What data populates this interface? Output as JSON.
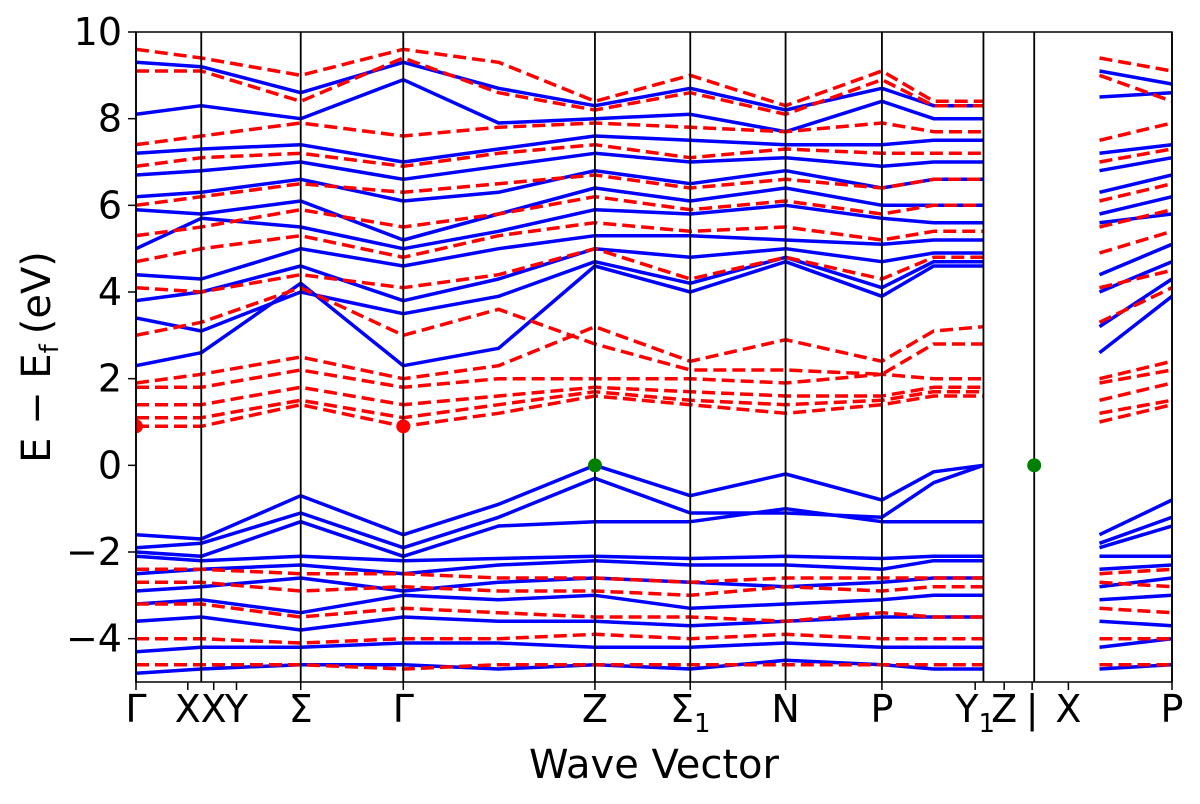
{
  "chart_data": {
    "type": "line",
    "title": "",
    "xlabel": "Wave Vector",
    "ylabel": "E − E_f (eV)",
    "ylabel_main": "E − E",
    "ylabel_sub": "f",
    "ylabel_unit": "(eV)",
    "ylim": [
      -5,
      10
    ],
    "xlim": [
      0,
      1
    ],
    "yticks": [
      -4,
      -2,
      0,
      2,
      4,
      6,
      8,
      10
    ],
    "ytick_labels": [
      "−4",
      "−2",
      "0",
      "2",
      "4",
      "6",
      "8",
      "10"
    ],
    "kpoint_ticks": [
      {
        "label": "Γ",
        "sub": "",
        "pos": 0.0
      },
      {
        "label": "X",
        "sub": "",
        "pos": 0.05
      },
      {
        "label": "X",
        "sub": "",
        "pos": 0.075
      },
      {
        "label": "Y",
        "sub": "",
        "pos": 0.097
      },
      {
        "label": "Σ",
        "sub": "",
        "pos": 0.159
      },
      {
        "label": "Γ",
        "sub": "",
        "pos": 0.258
      },
      {
        "label": "Z",
        "sub": "",
        "pos": 0.443
      },
      {
        "label": "Σ",
        "sub": "1",
        "pos": 0.535
      },
      {
        "label": "N",
        "sub": "",
        "pos": 0.627
      },
      {
        "label": "P",
        "sub": "",
        "pos": 0.72
      },
      {
        "label": "Y",
        "sub": "1",
        "pos": 0.81
      },
      {
        "label": "Z",
        "sub": "",
        "pos": 0.838
      },
      {
        "label": "|",
        "sub": "",
        "pos": 0.865
      },
      {
        "label": "X",
        "sub": "",
        "pos": 0.9
      },
      {
        "label": "P",
        "sub": "",
        "pos": 1.0
      }
    ],
    "segment_lines": [
      0.0,
      0.063,
      0.159,
      0.258,
      0.443,
      0.535,
      0.627,
      0.72,
      0.818,
      0.867,
      1.0
    ],
    "path_break": [
      0.818,
      0.867
    ],
    "k_nodes": [
      0.0,
      0.063,
      0.159,
      0.258,
      0.35,
      0.443,
      0.535,
      0.627,
      0.72,
      0.77,
      0.818,
      0.867,
      0.93,
      1.0
    ],
    "series": [
      {
        "spin": "up",
        "color": "#0000ff",
        "style": "solid",
        "energies": [
          -1.6,
          -1.7,
          -0.7,
          -1.6,
          -0.9,
          0.0,
          -0.7,
          -0.2,
          -0.8,
          -0.15,
          0.0,
          null,
          -1.6,
          -0.8
        ]
      },
      {
        "spin": "up",
        "color": "#0000ff",
        "style": "solid",
        "energies": [
          -1.9,
          -1.8,
          -1.1,
          -1.9,
          -1.2,
          -0.3,
          -1.1,
          -1.1,
          -1.2,
          -0.4,
          0.0,
          null,
          -1.8,
          -1.2
        ]
      },
      {
        "spin": "up",
        "color": "#0000ff",
        "style": "solid",
        "energies": [
          -2.0,
          -2.1,
          -1.3,
          -2.1,
          -1.4,
          -1.3,
          -1.3,
          -1.0,
          -1.3,
          -1.3,
          -1.3,
          null,
          -1.9,
          -1.4
        ]
      },
      {
        "spin": "up",
        "color": "#0000ff",
        "style": "solid",
        "energies": [
          -2.1,
          -2.2,
          -2.1,
          -2.2,
          -2.15,
          -2.1,
          -2.15,
          -2.1,
          -2.15,
          -2.1,
          -2.1,
          null,
          -2.1,
          -2.1
        ]
      },
      {
        "spin": "up",
        "color": "#0000ff",
        "style": "solid",
        "energies": [
          -2.5,
          -2.4,
          -2.3,
          -2.5,
          -2.3,
          -2.2,
          -2.3,
          -2.3,
          -2.4,
          -2.2,
          -2.2,
          null,
          -2.4,
          -2.3
        ]
      },
      {
        "spin": "up",
        "color": "#0000ff",
        "style": "solid",
        "energies": [
          -2.9,
          -2.8,
          -2.6,
          -2.9,
          -2.7,
          -2.6,
          -2.7,
          -2.8,
          -2.7,
          -2.6,
          -2.6,
          null,
          -2.8,
          -2.6
        ]
      },
      {
        "spin": "up",
        "color": "#0000ff",
        "style": "solid",
        "energies": [
          -3.2,
          -3.1,
          -3.4,
          -3.0,
          -3.1,
          -3.0,
          -3.3,
          -3.2,
          -3.1,
          -3.0,
          -3.0,
          null,
          -3.1,
          -3.0
        ]
      },
      {
        "spin": "up",
        "color": "#0000ff",
        "style": "solid",
        "energies": [
          -3.6,
          -3.5,
          -3.8,
          -3.5,
          -3.6,
          -3.6,
          -3.7,
          -3.6,
          -3.5,
          -3.5,
          -3.5,
          null,
          -3.6,
          -3.7
        ]
      },
      {
        "spin": "up",
        "color": "#0000ff",
        "style": "solid",
        "energies": [
          -4.3,
          -4.2,
          -4.2,
          -4.1,
          -4.1,
          -4.2,
          -4.2,
          -4.1,
          -4.2,
          -4.2,
          -4.2,
          null,
          -4.2,
          -4.0
        ]
      },
      {
        "spin": "up",
        "color": "#0000ff",
        "style": "solid",
        "energies": [
          -4.8,
          -4.7,
          -4.6,
          -4.6,
          -4.7,
          -4.6,
          -4.7,
          -4.5,
          -4.6,
          -4.7,
          -4.7,
          null,
          -4.7,
          -4.6
        ]
      },
      {
        "spin": "up",
        "color": "#0000ff",
        "style": "solid",
        "energies": [
          2.3,
          2.6,
          4.2,
          2.3,
          2.7,
          4.6,
          4.0,
          4.7,
          3.9,
          4.6,
          4.6,
          null,
          2.6,
          3.9
        ]
      },
      {
        "spin": "up",
        "color": "#0000ff",
        "style": "solid",
        "energies": [
          3.4,
          3.1,
          4.0,
          3.5,
          3.9,
          4.7,
          4.2,
          4.8,
          4.1,
          4.7,
          4.7,
          null,
          3.2,
          4.3
        ]
      },
      {
        "spin": "up",
        "color": "#0000ff",
        "style": "solid",
        "energies": [
          3.8,
          4.0,
          4.6,
          3.8,
          4.3,
          5.0,
          4.8,
          5.0,
          4.7,
          4.9,
          4.9,
          null,
          4.0,
          4.7
        ]
      },
      {
        "spin": "up",
        "color": "#0000ff",
        "style": "solid",
        "energies": [
          4.4,
          4.3,
          5.0,
          4.6,
          5.0,
          5.3,
          5.3,
          5.2,
          5.1,
          5.2,
          5.2,
          null,
          4.4,
          5.1
        ]
      },
      {
        "spin": "up",
        "color": "#0000ff",
        "style": "solid",
        "energies": [
          5.0,
          5.7,
          5.5,
          5.0,
          5.4,
          5.9,
          5.8,
          6.0,
          5.7,
          5.6,
          5.6,
          null,
          5.6,
          5.8
        ]
      },
      {
        "spin": "up",
        "color": "#0000ff",
        "style": "solid",
        "energies": [
          5.9,
          5.8,
          6.1,
          5.2,
          5.8,
          6.4,
          6.1,
          6.4,
          6.0,
          6.0,
          6.0,
          null,
          5.8,
          6.2
        ]
      },
      {
        "spin": "up",
        "color": "#0000ff",
        "style": "solid",
        "energies": [
          6.2,
          6.3,
          6.6,
          6.1,
          6.3,
          6.8,
          6.5,
          6.8,
          6.4,
          6.6,
          6.6,
          null,
          6.3,
          6.7
        ]
      },
      {
        "spin": "up",
        "color": "#0000ff",
        "style": "solid",
        "energies": [
          6.7,
          6.8,
          7.0,
          6.6,
          6.9,
          7.2,
          7.0,
          7.1,
          6.9,
          7.0,
          7.0,
          null,
          6.8,
          7.1
        ]
      },
      {
        "spin": "up",
        "color": "#0000ff",
        "style": "solid",
        "energies": [
          7.2,
          7.3,
          7.4,
          7.0,
          7.3,
          7.6,
          7.5,
          7.4,
          7.4,
          7.5,
          7.5,
          null,
          7.2,
          7.4
        ]
      },
      {
        "spin": "up",
        "color": "#0000ff",
        "style": "solid",
        "energies": [
          8.1,
          8.3,
          8.0,
          8.9,
          7.9,
          8.0,
          8.1,
          7.7,
          8.4,
          8.0,
          8.0,
          null,
          8.5,
          8.6
        ]
      },
      {
        "spin": "up",
        "color": "#0000ff",
        "style": "solid",
        "energies": [
          9.3,
          9.2,
          8.6,
          9.3,
          8.7,
          8.3,
          8.7,
          8.2,
          8.7,
          8.3,
          8.3,
          null,
          9.1,
          8.8
        ]
      },
      {
        "spin": "down",
        "color": "#ff0000",
        "style": "dashed",
        "energies": [
          -2.4,
          -2.4,
          -2.5,
          -2.5,
          -2.6,
          -2.6,
          -2.7,
          -2.6,
          -2.6,
          -2.6,
          -2.6,
          null,
          -2.5,
          -2.4
        ]
      },
      {
        "spin": "down",
        "color": "#ff0000",
        "style": "dashed",
        "energies": [
          -2.7,
          -2.7,
          -2.9,
          -2.8,
          -2.9,
          -2.9,
          -3.0,
          -2.8,
          -2.9,
          -2.8,
          -2.8,
          null,
          -2.7,
          -2.8
        ]
      },
      {
        "spin": "down",
        "color": "#ff0000",
        "style": "dashed",
        "energies": [
          -3.2,
          -3.2,
          -3.5,
          -3.3,
          -3.4,
          -3.5,
          -3.5,
          -3.6,
          -3.4,
          -3.5,
          -3.5,
          null,
          -3.3,
          -3.4
        ]
      },
      {
        "spin": "down",
        "color": "#ff0000",
        "style": "dashed",
        "energies": [
          -4.0,
          -4.0,
          -4.1,
          -4.0,
          -4.0,
          -3.9,
          -4.0,
          -3.9,
          -4.0,
          -4.0,
          -4.0,
          null,
          -4.0,
          -4.0
        ]
      },
      {
        "spin": "down",
        "color": "#ff0000",
        "style": "dashed",
        "energies": [
          -4.6,
          -4.6,
          -4.6,
          -4.7,
          -4.6,
          -4.6,
          -4.6,
          -4.6,
          -4.6,
          -4.6,
          -4.6,
          null,
          -4.6,
          -4.6
        ]
      },
      {
        "spin": "down",
        "color": "#ff0000",
        "style": "dashed",
        "energies": [
          0.9,
          0.9,
          1.4,
          0.9,
          1.2,
          1.6,
          1.4,
          1.2,
          1.4,
          1.6,
          1.6,
          null,
          1.0,
          1.4
        ]
      },
      {
        "spin": "down",
        "color": "#ff0000",
        "style": "dashed",
        "energies": [
          1.1,
          1.1,
          1.5,
          1.1,
          1.4,
          1.7,
          1.5,
          1.4,
          1.5,
          1.7,
          1.7,
          null,
          1.2,
          1.5
        ]
      },
      {
        "spin": "down",
        "color": "#ff0000",
        "style": "dashed",
        "energies": [
          1.4,
          1.4,
          1.8,
          1.4,
          1.6,
          1.8,
          1.7,
          1.6,
          1.6,
          1.8,
          1.8,
          null,
          1.5,
          1.9
        ]
      },
      {
        "spin": "down",
        "color": "#ff0000",
        "style": "dashed",
        "energies": [
          1.8,
          1.8,
          2.2,
          1.8,
          2.0,
          2.0,
          2.0,
          1.9,
          2.1,
          2.0,
          2.0,
          null,
          1.9,
          2.2
        ]
      },
      {
        "spin": "down",
        "color": "#ff0000",
        "style": "dashed",
        "energies": [
          1.9,
          2.1,
          2.5,
          2.0,
          2.3,
          3.2,
          2.4,
          2.9,
          2.4,
          3.1,
          3.2,
          null,
          2.0,
          2.4
        ]
      },
      {
        "spin": "down",
        "color": "#ff0000",
        "style": "dashed",
        "energies": [
          3.0,
          3.3,
          4.1,
          3.0,
          3.6,
          2.8,
          2.2,
          2.2,
          2.1,
          2.8,
          2.8,
          null,
          3.3,
          4.1
        ]
      },
      {
        "spin": "down",
        "color": "#ff0000",
        "style": "dashed",
        "energies": [
          4.1,
          4.0,
          4.4,
          4.1,
          4.4,
          5.0,
          4.3,
          4.8,
          4.3,
          4.8,
          4.8,
          null,
          4.1,
          4.5
        ]
      },
      {
        "spin": "down",
        "color": "#ff0000",
        "style": "dashed",
        "energies": [
          4.7,
          5.0,
          5.3,
          4.8,
          5.3,
          5.6,
          5.4,
          5.5,
          5.2,
          5.4,
          5.4,
          null,
          4.9,
          5.4
        ]
      },
      {
        "spin": "down",
        "color": "#ff0000",
        "style": "dashed",
        "energies": [
          5.3,
          5.5,
          5.9,
          5.5,
          5.8,
          6.2,
          5.9,
          6.1,
          5.8,
          6.0,
          6.0,
          null,
          5.5,
          5.9
        ]
      },
      {
        "spin": "down",
        "color": "#ff0000",
        "style": "dashed",
        "energies": [
          6.0,
          6.2,
          6.5,
          6.3,
          6.5,
          6.7,
          6.4,
          6.6,
          6.4,
          6.6,
          6.6,
          null,
          6.1,
          6.5
        ]
      },
      {
        "spin": "down",
        "color": "#ff0000",
        "style": "dashed",
        "energies": [
          6.9,
          7.1,
          7.2,
          6.9,
          7.2,
          7.4,
          7.1,
          7.3,
          7.2,
          7.2,
          7.2,
          null,
          7.0,
          7.3
        ]
      },
      {
        "spin": "down",
        "color": "#ff0000",
        "style": "dashed",
        "energies": [
          7.4,
          7.6,
          7.9,
          7.6,
          7.8,
          7.9,
          7.8,
          7.7,
          7.9,
          7.7,
          7.7,
          null,
          7.5,
          7.9
        ]
      },
      {
        "spin": "down",
        "color": "#ff0000",
        "style": "dashed",
        "energies": [
          9.1,
          9.1,
          8.4,
          9.4,
          8.6,
          8.2,
          8.6,
          8.1,
          8.9,
          8.3,
          8.3,
          null,
          9.0,
          8.4
        ]
      },
      {
        "spin": "down",
        "color": "#ff0000",
        "style": "dashed",
        "energies": [
          9.6,
          9.4,
          9.0,
          9.6,
          9.3,
          8.4,
          9.0,
          8.3,
          9.1,
          8.4,
          8.4,
          null,
          9.4,
          9.1
        ]
      }
    ],
    "markers": [
      {
        "name": "cbm",
        "color": "#ff0000",
        "points": [
          [
            0.0,
            0.9
          ],
          [
            0.258,
            0.9
          ]
        ]
      },
      {
        "name": "vbm",
        "color": "#008000",
        "points": [
          [
            0.443,
            0.0
          ],
          [
            0.867,
            0.0
          ]
        ]
      }
    ],
    "grid": false,
    "legend": "none"
  }
}
